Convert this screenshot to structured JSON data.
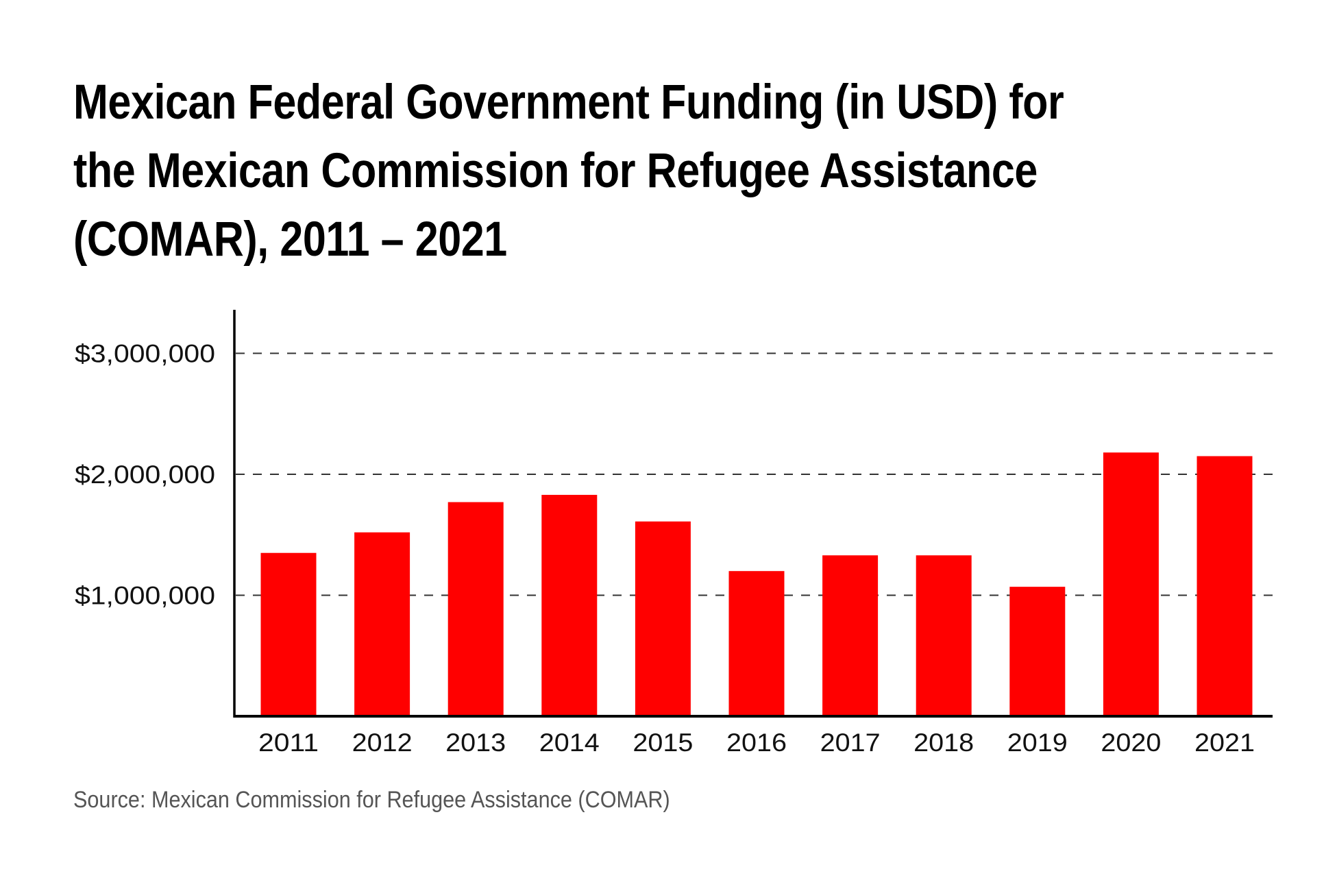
{
  "title_lines": [
    "Mexican Federal Government Funding (in USD) for",
    "the Mexican Commission for Refugee Assistance",
    "(COMAR), 2011 – 2021"
  ],
  "source": "Source: Mexican Commission for Refugee Assistance (COMAR)",
  "colors": {
    "bar": "#ff0000",
    "axis": "#000000",
    "grid": "#333333",
    "source_text": "#555555"
  },
  "chart_data": {
    "type": "bar",
    "title": "Mexican Federal Government Funding (in USD) for the Mexican Commission for Refugee Assistance (COMAR), 2011 – 2021",
    "xlabel": "",
    "ylabel": "",
    "categories": [
      "2011",
      "2012",
      "2013",
      "2014",
      "2015",
      "2016",
      "2017",
      "2018",
      "2019",
      "2020",
      "2021"
    ],
    "values": [
      1350000,
      1520000,
      1770000,
      1830000,
      1610000,
      1200000,
      1330000,
      1330000,
      1070000,
      2180000,
      2150000
    ],
    "ylim": [
      0,
      3350000
    ],
    "yticks": [
      1000000,
      2000000,
      3000000
    ],
    "ytick_labels": [
      "$1,000,000",
      "$2,000,000",
      "$3,000,000"
    ],
    "grid": "horizontal dashed",
    "legend": "none",
    "source": "Source: Mexican Commission for Refugee Assistance (COMAR)"
  }
}
